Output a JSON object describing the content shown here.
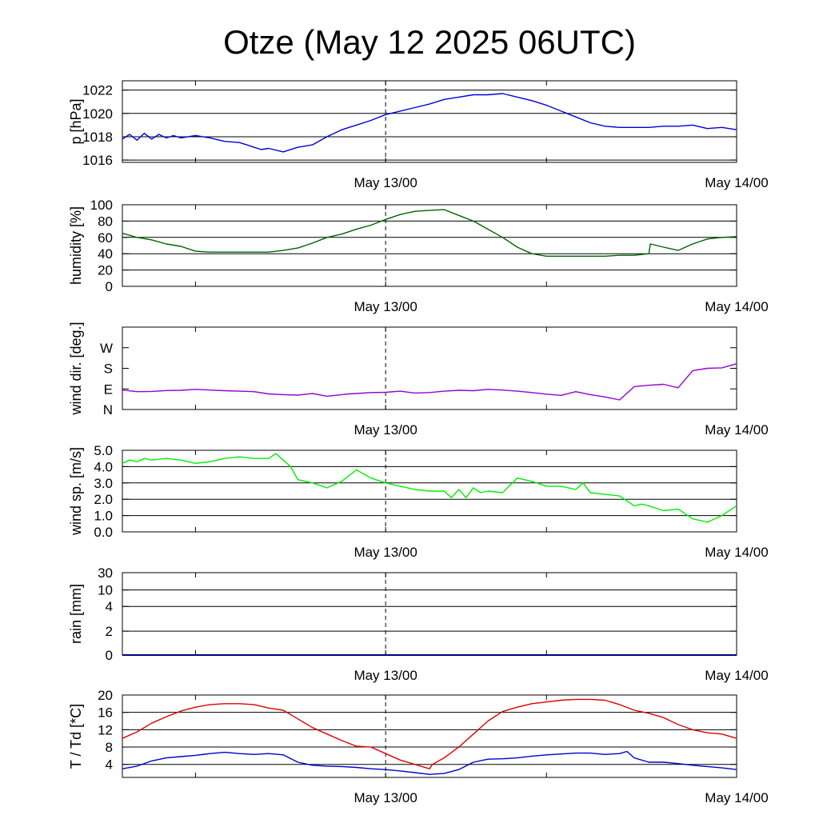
{
  "title": "Otze (May 12 2025 06UTC)",
  "x_tick_labels": [
    "May 13/00",
    "May 14/00"
  ],
  "colors": {
    "pressure": "#0000dd",
    "humidity": "#006400",
    "wind_dir": "#9400d3",
    "wind_speed": "#00ee00",
    "rain": "#000080",
    "temperature": "#dd0000",
    "dewpoint": "#0000cc",
    "grid": "#000000"
  },
  "chart_data": [
    {
      "type": "line",
      "ylabel": "p [hPa]",
      "ylim": [
        1015.8,
        1022.8
      ],
      "yticks": [
        1016,
        1018,
        1020,
        1022
      ],
      "ytick_labels": [
        "1016",
        "1018",
        "1020",
        "1022"
      ],
      "grid": true,
      "xlim": [
        0,
        42
      ],
      "x_major_ticks": [
        18,
        42
      ],
      "series": [
        {
          "x": [
            0,
            0.5,
            1,
            1.5,
            2,
            2.5,
            3,
            3.5,
            4,
            5,
            6,
            7,
            8,
            8.5,
            9,
            9.5,
            10,
            11,
            12,
            13,
            14,
            15,
            16,
            17,
            18,
            19,
            20,
            21,
            22,
            23,
            24,
            25,
            26,
            27,
            28,
            29,
            30,
            31,
            32,
            33,
            34,
            35,
            36,
            37,
            38,
            39,
            40,
            41,
            42
          ],
          "y": [
            1017.8,
            1018.2,
            1017.7,
            1018.3,
            1017.8,
            1018.2,
            1017.9,
            1018.1,
            1017.9,
            1018.1,
            1017.9,
            1017.6,
            1017.5,
            1017.3,
            1017.1,
            1016.9,
            1017.0,
            1016.7,
            1017.1,
            1017.3,
            1018.0,
            1018.6,
            1019.0,
            1019.4,
            1019.9,
            1020.2,
            1020.5,
            1020.8,
            1021.2,
            1021.4,
            1021.6,
            1021.6,
            1021.7,
            1021.4,
            1021.1,
            1020.7,
            1020.2,
            1019.7,
            1019.2,
            1018.9,
            1018.8,
            1018.8,
            1018.8,
            1018.9,
            1018.9,
            1019.0,
            1018.7,
            1018.8,
            1018.6
          ]
        }
      ]
    },
    {
      "type": "line",
      "ylabel": "humidity [%]",
      "ylim": [
        0,
        100
      ],
      "yticks": [
        0,
        20,
        40,
        60,
        80,
        100
      ],
      "ytick_labels": [
        "0",
        "20",
        "40",
        "60",
        "80",
        "100"
      ],
      "grid": true,
      "xlim": [
        0,
        42
      ],
      "x_major_ticks": [
        18,
        42
      ],
      "series": [
        {
          "x": [
            0,
            1,
            2,
            3,
            4,
            5,
            6,
            7,
            8,
            9,
            10,
            11,
            12,
            13,
            14,
            15,
            16,
            17,
            18,
            19,
            20,
            21,
            22,
            23,
            24,
            25,
            26,
            27,
            28,
            29,
            30,
            31,
            32,
            33,
            34,
            35,
            36,
            36.1,
            37,
            38,
            39,
            40,
            41,
            42
          ],
          "y": [
            65,
            60,
            57,
            52,
            49,
            43,
            42,
            42,
            42,
            42,
            42,
            44,
            47,
            53,
            60,
            64,
            70,
            75,
            82,
            88,
            92,
            93,
            94,
            87,
            80,
            70,
            60,
            48,
            40,
            37,
            37,
            37,
            37,
            37,
            38,
            38,
            40,
            52,
            48,
            44,
            52,
            58,
            60,
            61
          ]
        }
      ]
    },
    {
      "type": "line",
      "ylabel": "wind dir. [deg.]",
      "ylim": [
        0,
        360
      ],
      "yticks": [
        0,
        90,
        180,
        270
      ],
      "ytick_labels": [
        "N",
        "E",
        "S",
        "W"
      ],
      "grid": false,
      "xlim": [
        0,
        42
      ],
      "x_major_ticks": [
        18,
        42
      ],
      "series": [
        {
          "x": [
            0,
            1,
            2,
            3,
            4,
            5,
            6,
            7,
            8,
            9,
            10,
            11,
            12,
            13,
            14,
            15,
            15.5,
            16,
            17,
            18,
            19,
            20,
            21,
            22,
            23,
            24,
            25,
            26,
            27,
            28,
            29,
            30,
            31,
            32,
            33,
            34,
            35,
            36,
            37,
            38,
            39,
            40,
            41,
            42
          ],
          "y": [
            85,
            78,
            79,
            83,
            84,
            88,
            85,
            82,
            80,
            78,
            68,
            65,
            63,
            70,
            58,
            65,
            68,
            70,
            74,
            75,
            80,
            72,
            74,
            80,
            84,
            82,
            88,
            85,
            80,
            74,
            67,
            62,
            78,
            65,
            55,
            42,
            100,
            106,
            110,
            95,
            170,
            180,
            182,
            200
          ]
        }
      ]
    },
    {
      "type": "line",
      "ylabel": "wind sp. [m/s]",
      "ylim": [
        0,
        5
      ],
      "yticks": [
        0,
        1,
        2,
        3,
        4,
        5
      ],
      "ytick_labels": [
        "0.0",
        "1.0",
        "2.0",
        "3.0",
        "4.0",
        "5.0"
      ],
      "grid": true,
      "xlim": [
        0,
        42
      ],
      "x_major_ticks": [
        18,
        42
      ],
      "series": [
        {
          "x": [
            0,
            0.5,
            1,
            1.5,
            2,
            3,
            4,
            5,
            6,
            7,
            8,
            9,
            10,
            10.5,
            11,
            11.5,
            12,
            13,
            14,
            15,
            16,
            17,
            18,
            19,
            20,
            21,
            22,
            22.5,
            23,
            23.5,
            24,
            24.5,
            25,
            26,
            27,
            28,
            29,
            30,
            31,
            31.5,
            32,
            33,
            34,
            35,
            35.5,
            36,
            37,
            38,
            39,
            40,
            41,
            42
          ],
          "y": [
            4.2,
            4.4,
            4.3,
            4.5,
            4.4,
            4.5,
            4.4,
            4.2,
            4.3,
            4.5,
            4.6,
            4.5,
            4.5,
            4.8,
            4.4,
            4.0,
            3.2,
            3.0,
            2.7,
            3.1,
            3.8,
            3.3,
            3.0,
            2.8,
            2.6,
            2.5,
            2.5,
            2.1,
            2.6,
            2.1,
            2.7,
            2.4,
            2.5,
            2.4,
            3.3,
            3.1,
            2.8,
            2.8,
            2.6,
            3.0,
            2.4,
            2.3,
            2.2,
            1.6,
            1.7,
            1.6,
            1.3,
            1.4,
            0.8,
            0.6,
            1.0,
            1.6
          ]
        }
      ]
    },
    {
      "type": "line",
      "ylabel": "rain [mm]",
      "ylim": [
        0,
        30
      ],
      "yticks": [
        0,
        2,
        4,
        10,
        30
      ],
      "ytick_labels": [
        "0",
        "2",
        "4",
        "10",
        "30"
      ],
      "grid": true,
      "xlim": [
        0,
        42
      ],
      "x_major_ticks": [
        18,
        42
      ],
      "series": [
        {
          "x": [
            0,
            42
          ],
          "y": [
            0,
            0
          ]
        }
      ]
    },
    {
      "type": "line",
      "ylabel": "T / Td [*C]",
      "ylim": [
        1,
        20
      ],
      "yticks": [
        4,
        8,
        12,
        16,
        20
      ],
      "ytick_labels": [
        "4",
        "8",
        "12",
        "16",
        "20"
      ],
      "grid": true,
      "xlim": [
        0,
        42
      ],
      "x_major_ticks": [
        18,
        42
      ],
      "series": [
        {
          "name": "T",
          "x": [
            0,
            1,
            2,
            3,
            4,
            5,
            6,
            7,
            8,
            9,
            10,
            11,
            12,
            13,
            14,
            15,
            16,
            17,
            18,
            19,
            20,
            21,
            21.2,
            22,
            23,
            24,
            25,
            26,
            27,
            28,
            29,
            30,
            31,
            32,
            33,
            34,
            35,
            36,
            37,
            38,
            39,
            40,
            41,
            42
          ],
          "y": [
            10,
            11.5,
            13.5,
            15,
            16.3,
            17.2,
            17.8,
            18,
            18,
            17.8,
            17,
            16.5,
            14.5,
            12.5,
            11,
            9.5,
            8.2,
            8,
            6.5,
            5,
            4,
            3,
            4,
            5.5,
            8,
            11,
            14,
            16.2,
            17.2,
            18,
            18.4,
            18.8,
            19,
            19,
            18.8,
            17.8,
            16.5,
            15.8,
            14.8,
            13.2,
            12,
            11.3,
            11,
            10
          ]
        },
        {
          "name": "Td",
          "x": [
            0,
            1,
            2,
            3,
            4,
            5,
            6,
            7,
            8,
            9,
            10,
            11,
            12,
            13,
            14,
            15,
            16,
            17,
            18,
            19,
            20,
            21,
            22,
            23,
            24,
            25,
            26,
            27,
            28,
            29,
            30,
            31,
            32,
            33,
            34,
            34.5,
            35,
            36,
            37,
            38,
            39,
            40,
            41,
            42
          ],
          "y": [
            3,
            3.6,
            4.8,
            5.5,
            5.8,
            6.1,
            6.5,
            6.8,
            6.5,
            6.3,
            6.5,
            6.2,
            4.5,
            3.8,
            3.6,
            3.5,
            3.3,
            3,
            2.8,
            2.5,
            2.1,
            1.7,
            1.9,
            2.8,
            4.5,
            5.2,
            5.3,
            5.5,
            5.9,
            6.2,
            6.4,
            6.6,
            6.6,
            6.3,
            6.5,
            7,
            5.5,
            4.5,
            4.5,
            4.2,
            3.8,
            3.5,
            3.2,
            2.8
          ]
        }
      ]
    }
  ]
}
